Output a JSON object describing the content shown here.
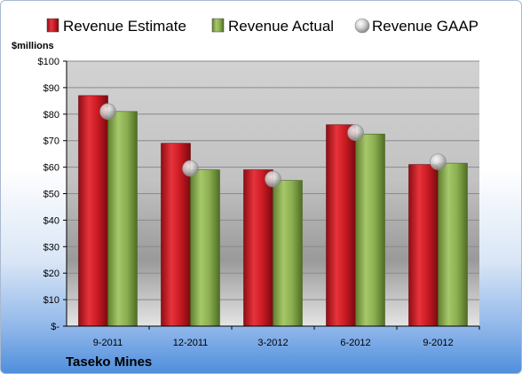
{
  "company": "Taseko Mines",
  "unit_label": "$millions",
  "chart_data": {
    "type": "bar",
    "title": "",
    "xlabel": "",
    "ylabel": "$millions",
    "categories": [
      "9-2011",
      "12-2011",
      "3-2012",
      "6-2012",
      "9-2012"
    ],
    "ylim": [
      0,
      100
    ],
    "yticks": [
      0,
      10,
      20,
      30,
      40,
      50,
      60,
      70,
      80,
      90,
      100
    ],
    "ytick_labels": [
      "$-",
      "$10",
      "$20",
      "$30",
      "$40",
      "$50",
      "$60",
      "$70",
      "$80",
      "$90",
      "$100"
    ],
    "grid": true,
    "legend_position": "top",
    "series": [
      {
        "name": "Revenue Estimate",
        "type": "bar",
        "color": "#d21e28",
        "values": [
          87,
          69,
          59,
          76,
          61
        ]
      },
      {
        "name": "Revenue Actual",
        "type": "bar",
        "color": "#8eb252",
        "values": [
          81,
          59,
          55,
          72.5,
          61.5
        ]
      },
      {
        "name": "Revenue GAAP",
        "type": "marker",
        "color": "#b8b8b8",
        "values": [
          81,
          59.5,
          55.5,
          73,
          62
        ]
      }
    ]
  }
}
